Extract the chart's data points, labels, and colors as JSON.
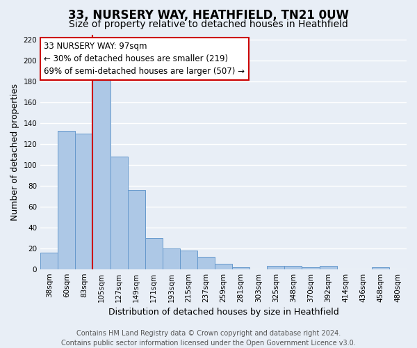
{
  "title": "33, NURSERY WAY, HEATHFIELD, TN21 0UW",
  "subtitle": "Size of property relative to detached houses in Heathfield",
  "xlabel": "Distribution of detached houses by size in Heathfield",
  "ylabel": "Number of detached properties",
  "categories": [
    "38sqm",
    "60sqm",
    "83sqm",
    "105sqm",
    "127sqm",
    "149sqm",
    "171sqm",
    "193sqm",
    "215sqm",
    "237sqm",
    "259sqm",
    "281sqm",
    "303sqm",
    "325sqm",
    "348sqm",
    "370sqm",
    "392sqm",
    "414sqm",
    "436sqm",
    "458sqm",
    "480sqm"
  ],
  "values": [
    16,
    133,
    130,
    183,
    108,
    76,
    30,
    20,
    18,
    12,
    5,
    2,
    0,
    3,
    3,
    2,
    3,
    0,
    0,
    2,
    0
  ],
  "bar_color": "#adc8e6",
  "bar_edge_color": "#6699cc",
  "background_color": "#e8eef6",
  "grid_color": "#ffffff",
  "property_line_color": "#cc0000",
  "property_line_index": 2.5,
  "annotation_text": "33 NURSERY WAY: 97sqm\n← 30% of detached houses are smaller (219)\n69% of semi-detached houses are larger (507) →",
  "annotation_box_facecolor": "#ffffff",
  "annotation_box_edgecolor": "#cc0000",
  "ylim": [
    0,
    225
  ],
  "yticks": [
    0,
    20,
    40,
    60,
    80,
    100,
    120,
    140,
    160,
    180,
    200,
    220
  ],
  "footer_text": "Contains HM Land Registry data © Crown copyright and database right 2024.\nContains public sector information licensed under the Open Government Licence v3.0.",
  "title_fontsize": 12,
  "subtitle_fontsize": 10,
  "xlabel_fontsize": 9,
  "ylabel_fontsize": 9,
  "tick_fontsize": 7.5,
  "annotation_fontsize": 8.5,
  "footer_fontsize": 7
}
